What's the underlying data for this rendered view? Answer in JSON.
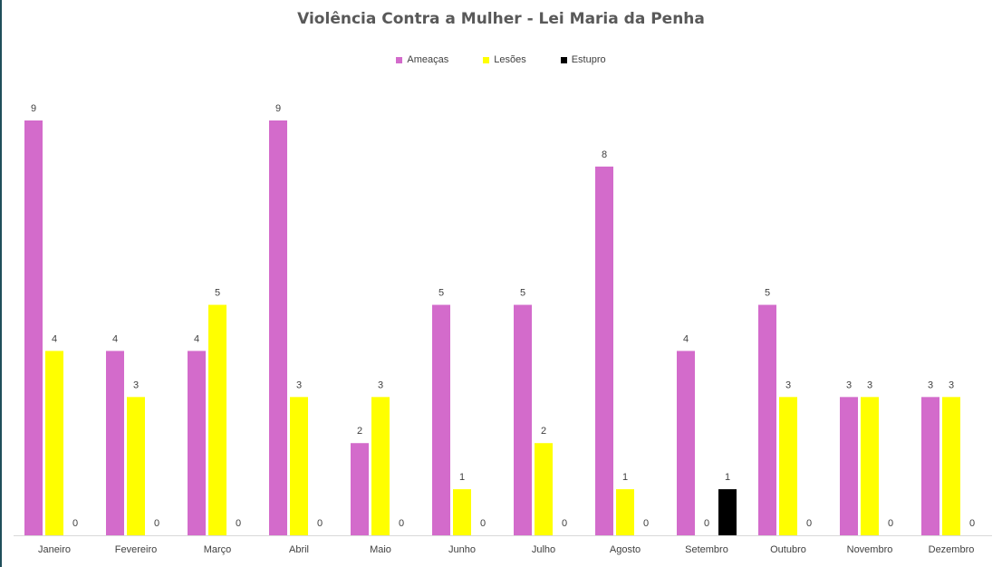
{
  "chart_data": {
    "type": "bar",
    "title": "Violência Contra a Mulher - Lei Maria da Penha",
    "xlabel": "",
    "ylabel": "",
    "ylim": [
      0,
      9
    ],
    "grid": false,
    "legend_position": "top-center",
    "categories": [
      "Janeiro",
      "Fevereiro",
      "Março",
      "Abril",
      "Maio",
      "Junho",
      "Julho",
      "Agosto",
      "Setembro",
      "Outubro",
      "Novembro",
      "Dezembro"
    ],
    "series": [
      {
        "name": "Ameaças",
        "color": "#d36bcb",
        "values": [
          9,
          4,
          4,
          9,
          2,
          5,
          5,
          8,
          4,
          5,
          3,
          3
        ]
      },
      {
        "name": "Lesões",
        "color": "#ffff00",
        "values": [
          4,
          3,
          5,
          3,
          3,
          1,
          2,
          1,
          0,
          3,
          3,
          3
        ]
      },
      {
        "name": "Estupro",
        "color": "#000000",
        "values": [
          0,
          0,
          0,
          0,
          0,
          0,
          0,
          0,
          1,
          0,
          0,
          0
        ]
      }
    ]
  }
}
